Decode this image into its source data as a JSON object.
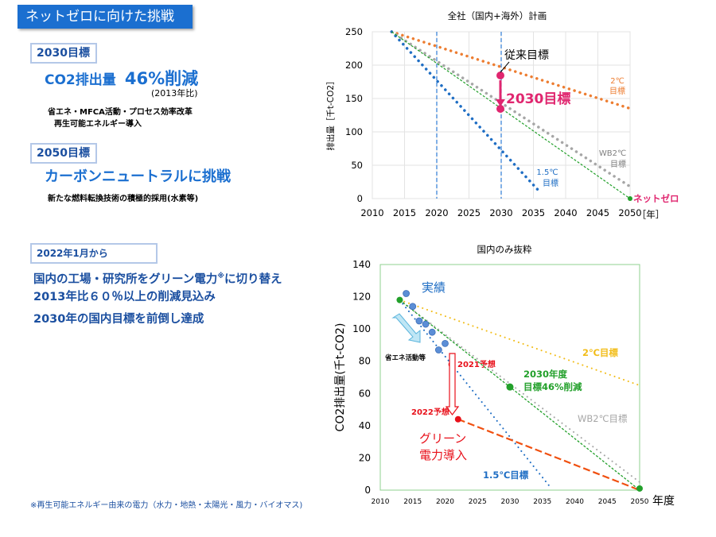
{
  "banner": "ネットゼロに向けた挑戦",
  "left": {
    "t2030_tag": "2030目標",
    "t2030_main_a": "CO2排出量",
    "t2030_main_b": "46%削減",
    "t2030_base": "(2013年比)",
    "t2030_line1": "省エネ・MFCA活動・プロセス効率改革",
    "t2030_line2": "再生可能エネルギー導入",
    "t2050_tag": "2050目標",
    "t2050_main": "カーボンニュートラルに挑戦",
    "t2050_line1": "新たな燃料転換技術の積極的採用(水素等)",
    "since_tag": "2022年1月から",
    "since_line1": "国内の工場・研究所をグリーン電力",
    "since_mark": "※",
    "since_line1b": "に切り替え",
    "since_line2": "2013年比６０％以上の削減見込み",
    "since_line3": "2030年の国内目標を前倒し達成",
    "footnote": "※再生可能エネルギー由来の電力（水力・地熱・太陽光・風力・バイオマス)"
  },
  "colors": {
    "blue": "#1f6ec4",
    "orange": "#ed7d31",
    "gray": "#a6a6a6",
    "green": "#22a02a",
    "pink": "#e0266f",
    "red": "#e8101a",
    "darkorange": "#f05010",
    "gold": "#f2bd1a"
  },
  "chart_data": [
    {
      "type": "line",
      "title": "全社（国内+海外）計画",
      "ylabel": "排出量［千t-CO2］",
      "xlabel": "［年］",
      "xlim": [
        2010,
        2050
      ],
      "ylim": [
        0,
        250
      ],
      "xticks": [
        2010,
        2015,
        2020,
        2025,
        2030,
        2035,
        2040,
        2045,
        2050
      ],
      "yticks": [
        0,
        50,
        100,
        150,
        200,
        250
      ],
      "grid": true,
      "vlines": [
        2020,
        2030
      ],
      "series": [
        {
          "name": "2℃目標",
          "style": "dotted",
          "color": "#ed7d31",
          "points": [
            [
              2013,
              250
            ],
            [
              2050,
              135
            ]
          ]
        },
        {
          "name": "WB2℃目標",
          "style": "dotted",
          "color": "#a6a6a6",
          "points": [
            [
              2013,
              250
            ],
            [
              2050,
              18
            ]
          ]
        },
        {
          "name": "1.5℃目標",
          "style": "dotted",
          "color": "#1f6ec4",
          "points": [
            [
              2013,
              250
            ],
            [
              2036,
              10
            ]
          ]
        },
        {
          "name": "ネットゼロ",
          "style": "dashed",
          "color": "#22a02a",
          "points": [
            [
              2013,
              250
            ],
            [
              2050,
              0
            ]
          ]
        }
      ],
      "markers": [
        {
          "label": "従来目標",
          "x": 2030,
          "y": 185
        },
        {
          "label": "2030目標",
          "x": 2030,
          "y": 135
        }
      ],
      "labels": {
        "orange": [
          "2℃",
          "目標"
        ],
        "gray": [
          "WB2℃",
          "目標"
        ],
        "blue": [
          "1.5℃",
          "目標"
        ],
        "netzero": "ネットゼロ"
      }
    },
    {
      "type": "line",
      "title": "国内のみ抜粋",
      "ylabel": "CO2排出量(千t-CO2)",
      "xlabel": "年度",
      "xlim": [
        2010,
        2050
      ],
      "ylim": [
        0,
        140
      ],
      "xticks": [
        2010,
        2015,
        2020,
        2025,
        2030,
        2035,
        2040,
        2045,
        2050
      ],
      "yticks": [
        0,
        20,
        40,
        60,
        80,
        100,
        120,
        140
      ],
      "actual": {
        "x": [
          2014,
          2015,
          2016,
          2017,
          2018,
          2019,
          2020
        ],
        "y": [
          122,
          114,
          105,
          103,
          98,
          87,
          91
        ]
      },
      "series": [
        {
          "name": "2℃目標",
          "style": "dotted",
          "color": "#f2bd1a",
          "points": [
            [
              2013,
              118
            ],
            [
              2050,
              65
            ]
          ]
        },
        {
          "name": "WB2℃目標",
          "style": "dotted",
          "color": "#a6a6a6",
          "points": [
            [
              2013,
              118
            ],
            [
              2050,
              5
            ]
          ]
        },
        {
          "name": "1.5℃目標",
          "style": "dotted",
          "color": "#1f6ec4",
          "points": [
            [
              2013,
              118
            ],
            [
              2036,
              3
            ]
          ]
        },
        {
          "name": "2030年度目標46%削減",
          "style": "dashed",
          "color": "#22a02a",
          "points": [
            [
              2013,
              118
            ],
            [
              2030,
              64
            ],
            [
              2050,
              0
            ]
          ]
        },
        {
          "name": "グリーン電力導入",
          "style": "dashed",
          "color": "#f05010",
          "points": [
            [
              2022,
              44
            ],
            [
              2050,
              0
            ]
          ]
        }
      ],
      "points": [
        {
          "label": "2021予想",
          "x": 2021,
          "y": 78
        },
        {
          "label": "2022予想",
          "x": 2022,
          "y": 44
        },
        {
          "label": "2030",
          "x": 2030,
          "y": 64
        },
        {
          "label": "2050",
          "x": 2050,
          "y": 1
        }
      ],
      "labels": {
        "actual": "実績",
        "energy": "省エネ活動等",
        "two_c": "2℃目標",
        "wb2c": "WB2℃目標",
        "one_five": "1.5℃目標",
        "target_l1": "2030年度",
        "target_l2": "目標46%削減",
        "green_l1": "グリーン",
        "green_l2": "電力導入",
        "p2021": "2021予想",
        "p2022": "2022予想"
      }
    }
  ]
}
